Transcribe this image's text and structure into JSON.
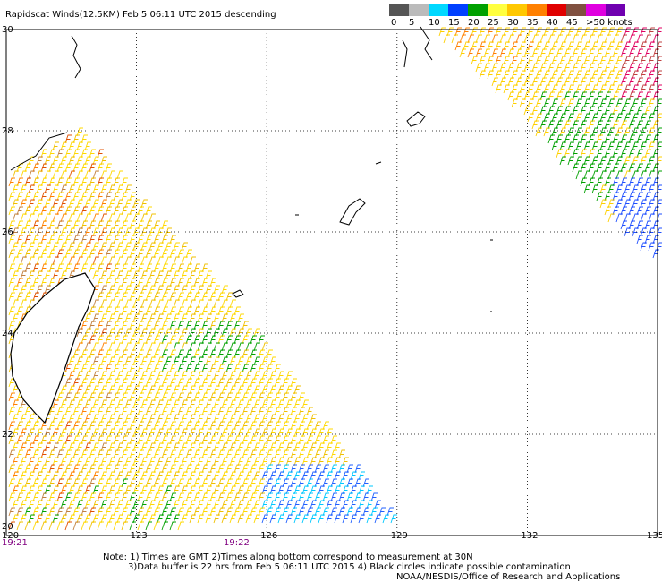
{
  "header": {
    "title": "Rapidscat Winds(12.5KM) Feb  5 06:11 UTC 2015 descending"
  },
  "legend": {
    "labels": [
      "0",
      "5",
      "10",
      "15",
      "20",
      "25",
      "30",
      "35",
      "40",
      "45",
      ">50 knots"
    ]
  },
  "map": {
    "lat_labels": [
      "30",
      "28",
      "26",
      "24",
      "22",
      "20"
    ],
    "lon_labels": [
      "120",
      "123",
      "126",
      "129",
      "132",
      "135"
    ],
    "times": [
      "19:21",
      "19:22"
    ]
  },
  "footer": {
    "notes": [
      "Note: 1) Times are GMT 2)Times along bottom correspond to measurement at 30N",
      "3)Data buffer is 22 hrs from Feb  5 06:11 UTC 2015 4) Black circles indicate possible contamination",
      "NOAA/NESDIS/Office of Research and Applications"
    ]
  }
}
